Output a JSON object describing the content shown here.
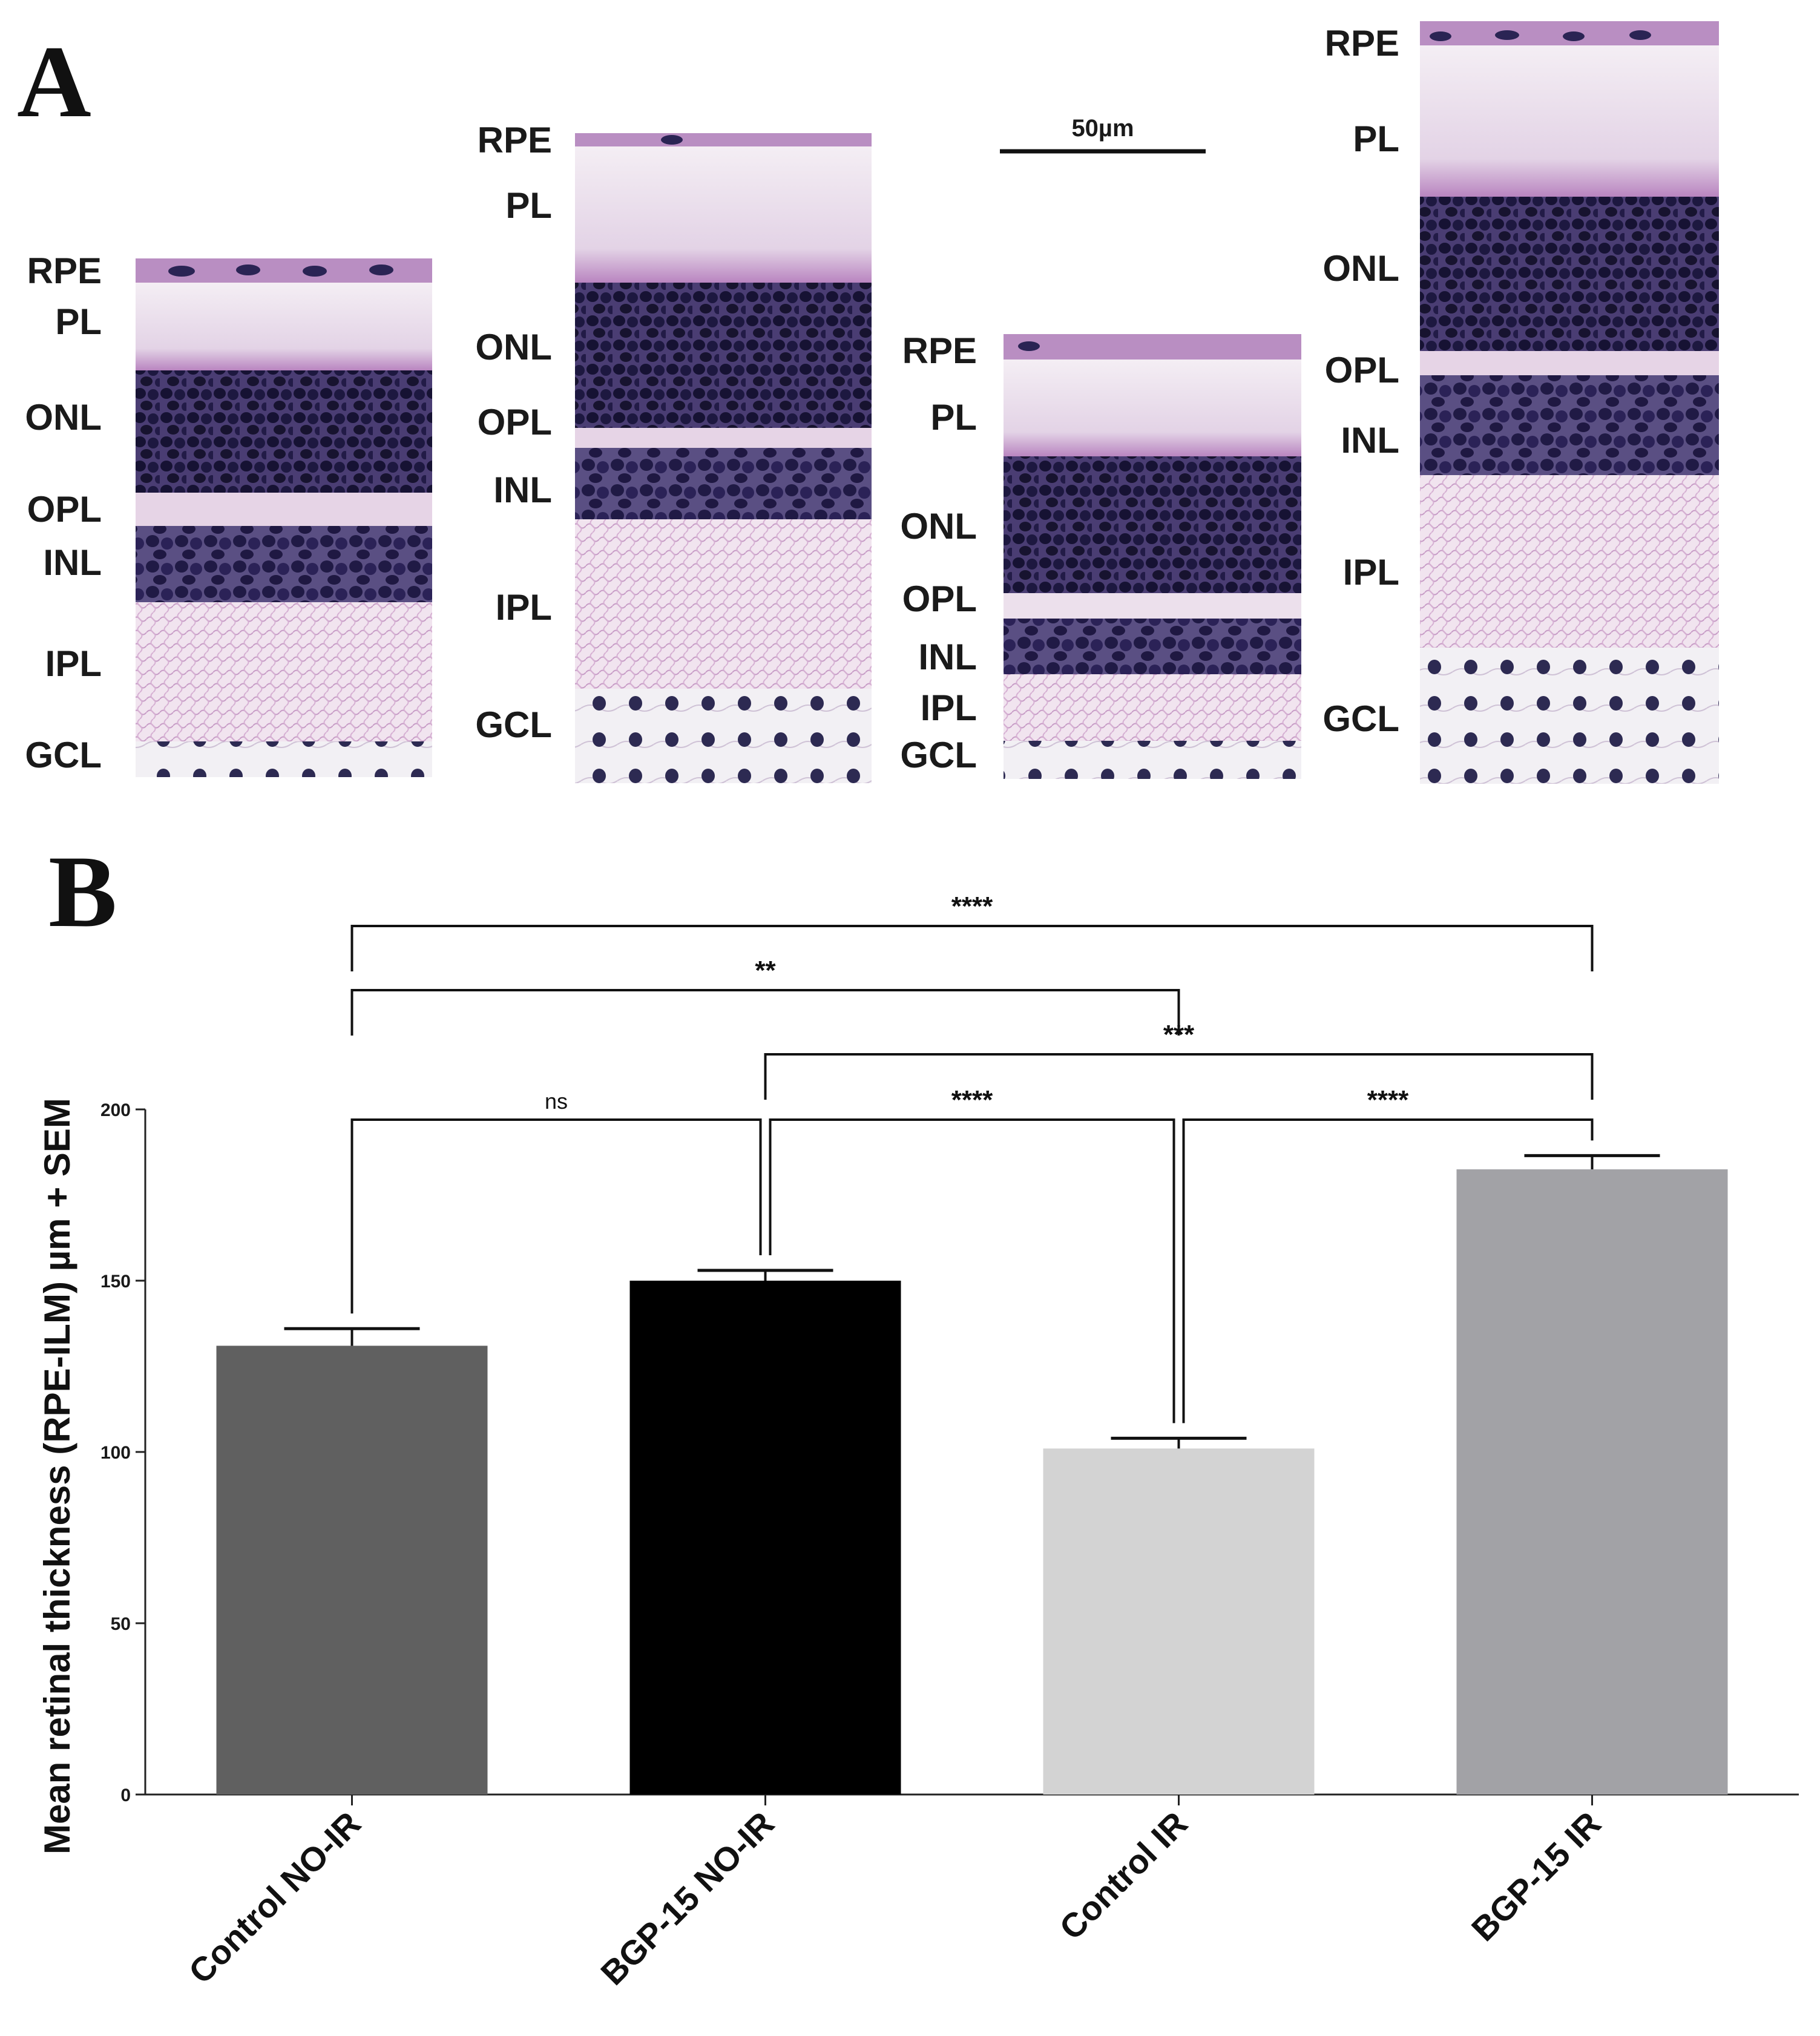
{
  "panel_a": {
    "letter": "A",
    "scale_bar_label": "50µm",
    "images": [
      {
        "name": "control-no-ir",
        "labels": [
          "RPE",
          "PL",
          "ONL",
          "OPL",
          "INL",
          "IPL",
          "GCL"
        ]
      },
      {
        "name": "bgp15-no-ir",
        "labels": [
          "RPE",
          "PL",
          "ONL",
          "OPL",
          "INL",
          "IPL",
          "GCL"
        ]
      },
      {
        "name": "control-ir",
        "labels": [
          "RPE",
          "PL",
          "ONL",
          "OPL",
          "INL",
          "IPL",
          "GCL"
        ]
      },
      {
        "name": "bgp15-ir",
        "labels": [
          "RPE",
          "PL",
          "ONL",
          "OPL",
          "INL",
          "IPL",
          "GCL"
        ]
      }
    ]
  },
  "panel_b": {
    "letter": "B"
  },
  "chart_data": {
    "type": "bar",
    "title": "",
    "xlabel": "",
    "ylabel": "Mean retinal thickness (RPE-ILM) µm + SEM",
    "ylim": [
      0,
      200
    ],
    "yticks": [
      0,
      50,
      100,
      150,
      200
    ],
    "categories": [
      "Control NO-IR",
      "BGP-15 NO-IR",
      "Control IR",
      "BGP-15 IR"
    ],
    "values": [
      131,
      150,
      101,
      182.5
    ],
    "sem": [
      5,
      3,
      3,
      4
    ],
    "colors": [
      "#606060",
      "#000000",
      "#d3d3d3",
      "#a2a2a6"
    ],
    "comparisons": [
      {
        "from": 0,
        "to": 3,
        "label": "****"
      },
      {
        "from": 0,
        "to": 2,
        "label": "**"
      },
      {
        "from": 1,
        "to": 3,
        "label": "***"
      },
      {
        "from": 0,
        "to": 1,
        "label": "ns"
      },
      {
        "from": 1,
        "to": 2,
        "label": "****"
      },
      {
        "from": 2,
        "to": 3,
        "label": "****"
      }
    ]
  }
}
